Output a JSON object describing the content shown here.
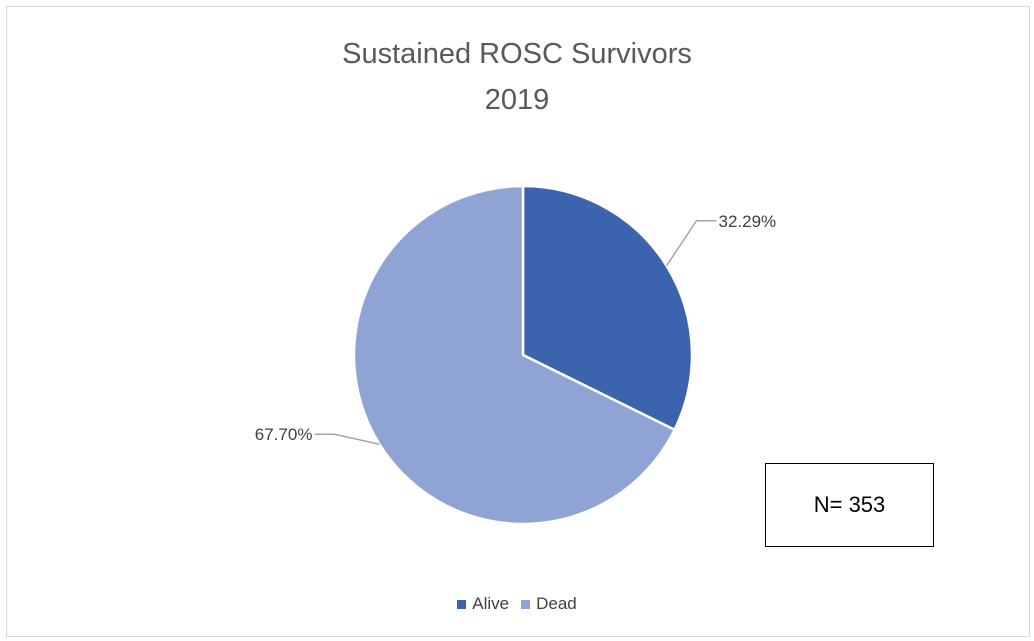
{
  "chart_data": {
    "type": "pie",
    "title": [
      "Sustained ROSC Survivors",
      "2019"
    ],
    "categories": [
      "Alive",
      "Dead"
    ],
    "values": [
      32.29,
      67.7
    ],
    "data_labels": [
      "32.29%",
      "67.70%"
    ],
    "colors": [
      "#3c64ae",
      "#8fa4d4"
    ],
    "legend_position": "bottom",
    "annotation": "N= 353"
  }
}
